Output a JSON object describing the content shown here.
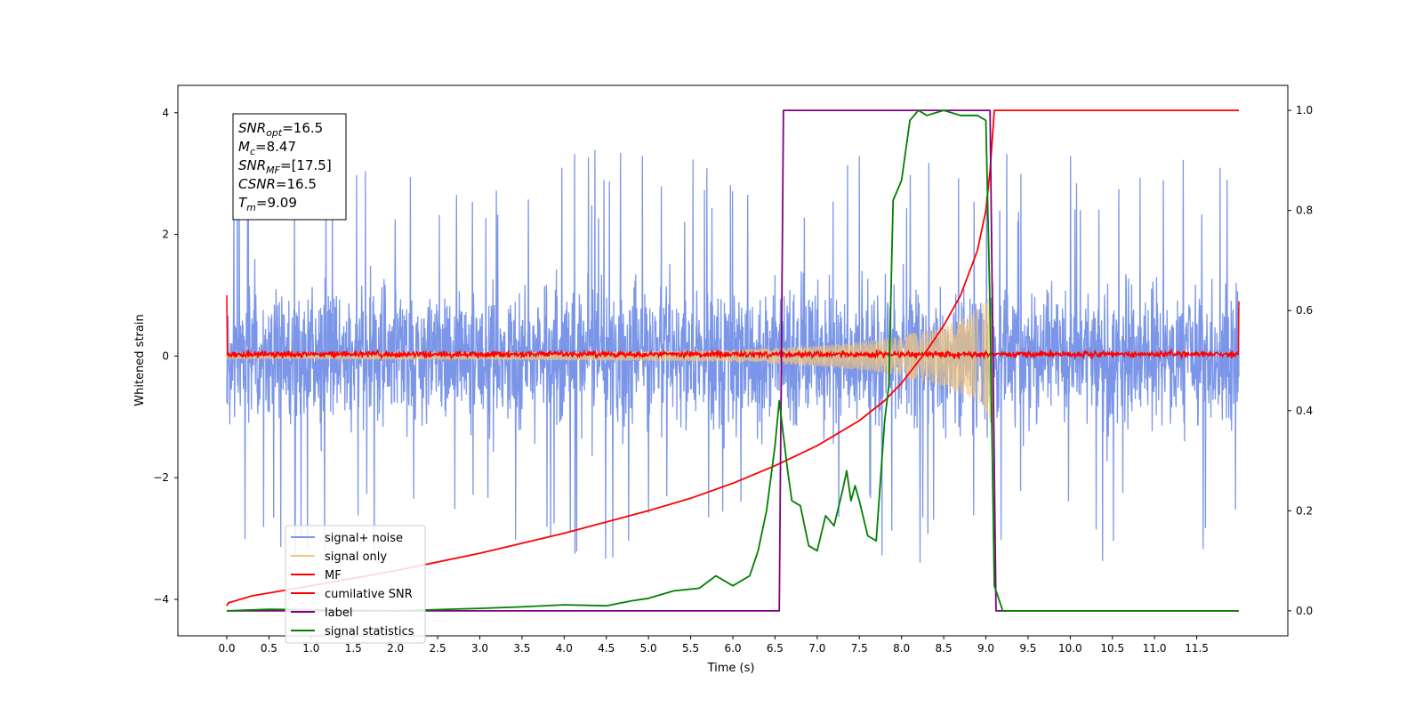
{
  "chart_data": {
    "type": "line",
    "title": "",
    "xlabel": "Time (s)",
    "ylabel": "Whitened strain",
    "y2label": "",
    "xlim": [
      -0.58,
      12.58
    ],
    "ylim": [
      -4.6,
      4.45
    ],
    "y2lim": [
      -0.05,
      1.05
    ],
    "x_ticks": [
      "0.0",
      "0.5",
      "1.0",
      "1.5",
      "2.0",
      "2.5",
      "3.0",
      "3.5",
      "4.0",
      "4.5",
      "5.0",
      "5.5",
      "6.0",
      "6.5",
      "7.0",
      "7.5",
      "8.0",
      "8.5",
      "9.0",
      "9.5",
      "10.0",
      "10.5",
      "11.0",
      "11.5"
    ],
    "y_ticks": [
      "4",
      "2",
      "0",
      "−2",
      "−4"
    ],
    "y2_ticks": [
      "1.0",
      "0.8",
      "0.6",
      "0.4",
      "0.2",
      "0.0"
    ],
    "grid": false,
    "legend_position": "lower-left",
    "info_box": {
      "lines": [
        {
          "sym": "SNR",
          "sub": "opt",
          "value": "=16.5"
        },
        {
          "sym": "M",
          "sub": "c",
          "value": "=8.47"
        },
        {
          "sym": "SNR",
          "sub": "MF",
          "value": "=[17.5]"
        },
        {
          "sym": "CSNR",
          "sub": "",
          "value": "=16.5"
        },
        {
          "sym": "T",
          "sub": "m",
          "value": "=9.09"
        }
      ]
    },
    "series": [
      {
        "name": "signal+ noise",
        "axis": "left",
        "color": "#7b96e8",
        "noise_envelope": {
          "x_range": [
            0.0,
            12.0
          ],
          "typical_amplitude": 1.6,
          "max_peak": 4.0,
          "min_peak": -3.6
        }
      },
      {
        "name": "signal only",
        "axis": "left",
        "color": "#f5c77a",
        "chirp_envelope": {
          "x": [
            0.0,
            1.0,
            2.0,
            3.0,
            4.0,
            5.0,
            6.0,
            6.5,
            7.0,
            7.5,
            8.0,
            8.5,
            8.8,
            9.0,
            9.09
          ],
          "amplitude": [
            0.05,
            0.05,
            0.06,
            0.06,
            0.07,
            0.08,
            0.1,
            0.13,
            0.17,
            0.23,
            0.33,
            0.5,
            0.68,
            0.9,
            1.2
          ]
        }
      },
      {
        "name": "MF",
        "axis": "left",
        "color": "#ff0000",
        "noise_level": {
          "x_range": [
            0.0,
            12.0
          ],
          "amplitude": 0.12,
          "edge_values": [
            1.0,
            0.9
          ]
        }
      },
      {
        "name": "cumilative SNR",
        "axis": "right",
        "color": "#ff0000",
        "x": [
          0.0,
          0.02,
          0.3,
          1.0,
          2.0,
          3.0,
          4.0,
          5.0,
          5.5,
          6.0,
          6.5,
          7.0,
          7.5,
          7.8,
          8.0,
          8.3,
          8.5,
          8.7,
          8.9,
          9.0,
          9.05,
          9.1,
          12.0
        ],
        "y": [
          0.01,
          0.016,
          0.03,
          0.05,
          0.08,
          0.115,
          0.155,
          0.2,
          0.225,
          0.255,
          0.29,
          0.33,
          0.38,
          0.42,
          0.455,
          0.52,
          0.57,
          0.63,
          0.72,
          0.8,
          0.88,
          1.0,
          1.0
        ]
      },
      {
        "name": "label",
        "axis": "right",
        "color": "#800080",
        "x": [
          0.0,
          6.55,
          6.6,
          9.05,
          9.12,
          12.0
        ],
        "y": [
          0.0,
          0.0,
          1.0,
          1.0,
          0.0,
          0.0
        ]
      },
      {
        "name": "signal statistics",
        "axis": "right",
        "color": "#008000",
        "x": [
          0.0,
          0.5,
          1.0,
          2.0,
          3.0,
          3.5,
          4.0,
          4.5,
          4.8,
          5.0,
          5.3,
          5.6,
          5.8,
          6.0,
          6.2,
          6.3,
          6.4,
          6.5,
          6.55,
          6.6,
          6.65,
          6.7,
          6.8,
          6.9,
          7.0,
          7.1,
          7.2,
          7.3,
          7.35,
          7.4,
          7.45,
          7.5,
          7.6,
          7.7,
          7.8,
          7.85,
          7.9,
          8.0,
          8.1,
          8.2,
          8.3,
          8.5,
          8.7,
          8.9,
          9.0,
          9.05,
          9.1,
          9.2,
          12.0
        ],
        "y": [
          0.0,
          0.003,
          0.002,
          0.0,
          0.005,
          0.008,
          0.012,
          0.01,
          0.02,
          0.025,
          0.04,
          0.045,
          0.07,
          0.05,
          0.07,
          0.12,
          0.2,
          0.33,
          0.42,
          0.35,
          0.28,
          0.22,
          0.21,
          0.13,
          0.12,
          0.19,
          0.17,
          0.24,
          0.28,
          0.22,
          0.25,
          0.22,
          0.15,
          0.14,
          0.38,
          0.45,
          0.82,
          0.86,
          0.98,
          1.0,
          0.99,
          1.0,
          0.99,
          0.99,
          0.98,
          0.6,
          0.05,
          0.0,
          0.0
        ]
      }
    ]
  }
}
